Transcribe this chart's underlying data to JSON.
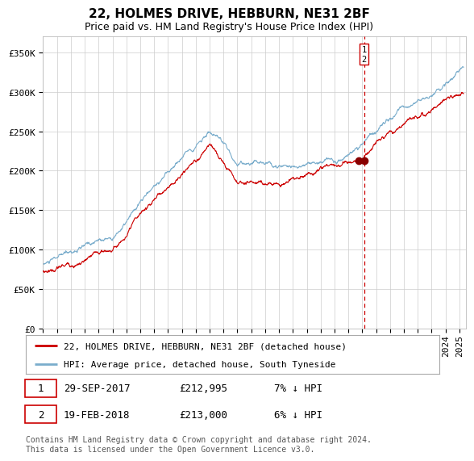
{
  "title": "22, HOLMES DRIVE, HEBBURN, NE31 2BF",
  "subtitle": "Price paid vs. HM Land Registry's House Price Index (HPI)",
  "legend_property": "22, HOLMES DRIVE, HEBBURN, NE31 2BF (detached house)",
  "legend_hpi": "HPI: Average price, detached house, South Tyneside",
  "footnote": "Contains HM Land Registry data © Crown copyright and database right 2024.\nThis data is licensed under the Open Government Licence v3.0.",
  "transactions": [
    {
      "num": "1",
      "date": "29-SEP-2017",
      "price": "212,995",
      "pct": "7% ↓ HPI",
      "year": 2017.747
    },
    {
      "num": "2",
      "date": "19-FEB-2018",
      "price": "213,000",
      "pct": "6% ↓ HPI",
      "year": 2018.133
    }
  ],
  "t1_val": 212995,
  "t2_val": 213000,
  "t1_year": 2017.747,
  "t2_year": 2018.133,
  "property_color": "#cc0000",
  "hpi_color": "#7aadcc",
  "vline_color": "#cc0000",
  "marker_color": "#880000",
  "ylim": [
    0,
    370000
  ],
  "yticks": [
    0,
    50000,
    100000,
    150000,
    200000,
    250000,
    300000,
    350000
  ],
  "ytick_labels": [
    "£0",
    "£50K",
    "£100K",
    "£150K",
    "£200K",
    "£250K",
    "£300K",
    "£350K"
  ],
  "xstart": 1995.0,
  "xend": 2025.5,
  "background_color": "#ffffff",
  "plot_bg_color": "#ffffff",
  "grid_color": "#cccccc",
  "title_fontsize": 11,
  "subtitle_fontsize": 9,
  "tick_fontsize": 8,
  "legend_fontsize": 8,
  "footnote_fontsize": 7
}
